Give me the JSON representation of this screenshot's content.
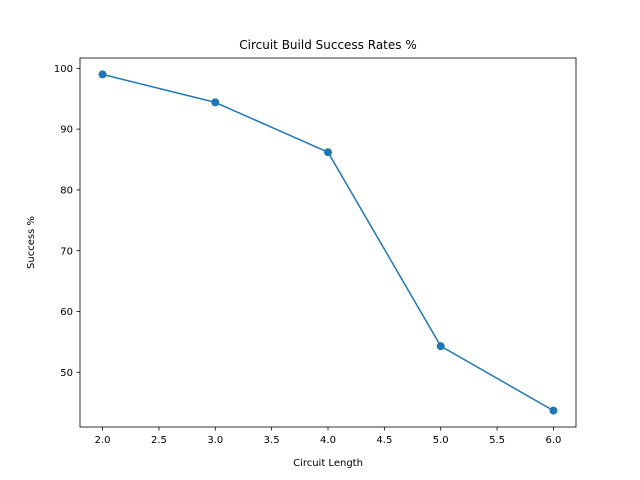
{
  "chart_data": {
    "type": "line",
    "title": "Circuit Build Success Rates %",
    "xlabel": "Circuit Length",
    "ylabel": "Success %",
    "x": [
      2.0,
      3.0,
      4.0,
      5.0,
      6.0
    ],
    "series": [
      {
        "values": [
          99.0,
          94.4,
          86.2,
          54.3,
          43.7
        ]
      }
    ],
    "xlim": [
      1.8,
      6.2
    ],
    "ylim": [
      41.0,
      101.7
    ],
    "xticks": [
      2.0,
      2.5,
      3.0,
      3.5,
      4.0,
      4.5,
      5.0,
      5.5,
      6.0
    ],
    "xtick_labels": [
      "2.0",
      "2.5",
      "3.0",
      "3.5",
      "4.0",
      "4.5",
      "5.0",
      "5.5",
      "6.0"
    ],
    "yticks": [
      50,
      60,
      70,
      80,
      90,
      100
    ],
    "ytick_labels": [
      "50",
      "60",
      "70",
      "80",
      "90",
      "100"
    ],
    "grid": false,
    "line_color": "#1f77b4",
    "marker": "circle"
  }
}
